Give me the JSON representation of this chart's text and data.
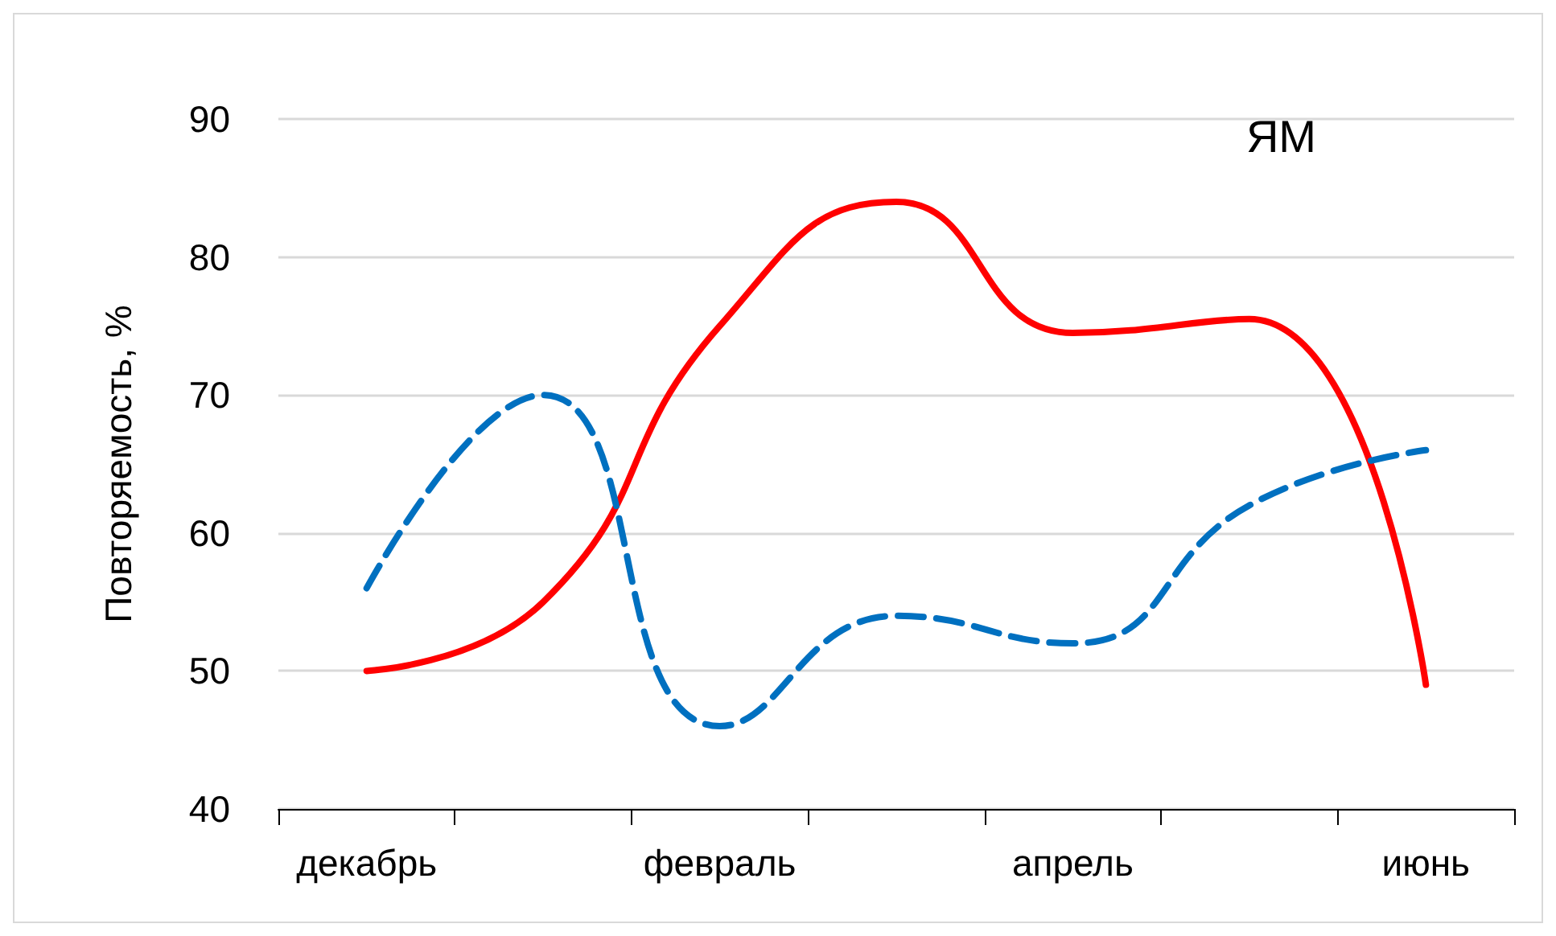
{
  "chart_data": {
    "type": "line",
    "ylabel": "Повторяемость, %",
    "annotations": [
      "ЯМ"
    ],
    "categories": [
      "декабрь",
      null,
      "февраль",
      null,
      "апрель",
      null,
      "июнь"
    ],
    "series": [
      {
        "color": "#ff0000",
        "line_style": "solid",
        "values": [
          50,
          55,
          75,
          84,
          74.5,
          75.5,
          49
        ]
      },
      {
        "color": "#0070c0",
        "line_style": "dashed",
        "values": [
          56,
          70,
          46,
          54,
          52,
          62,
          66
        ]
      }
    ],
    "ylim": [
      40,
      90
    ],
    "yticks": [
      40,
      50,
      60,
      70,
      80,
      90
    ],
    "grid": "y",
    "marker": "none"
  }
}
